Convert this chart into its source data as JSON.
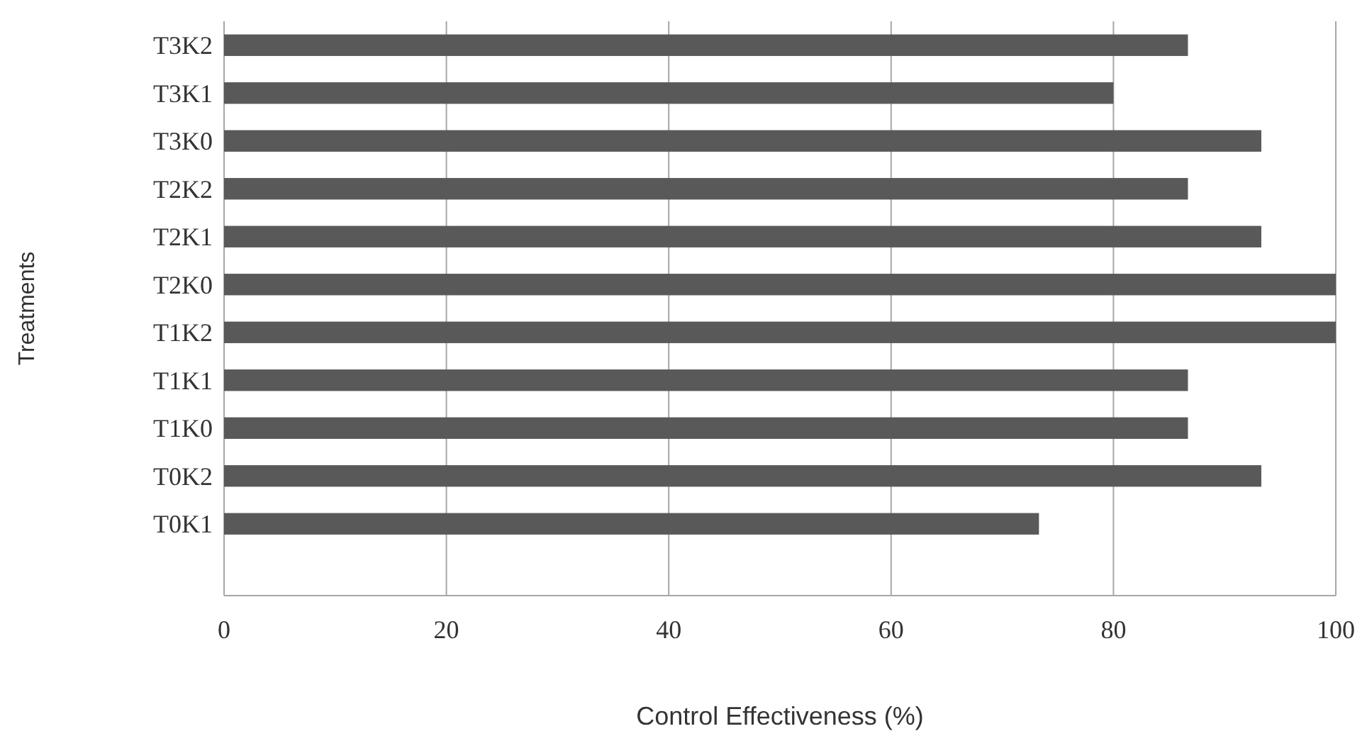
{
  "chart_data": {
    "type": "bar",
    "orientation": "horizontal",
    "xlabel": "Control Effectiveness (%)",
    "ylabel": "Treatments",
    "categories": [
      "T3K2",
      "T3K1",
      "T3K0",
      "T2K2",
      "T2K1",
      "T2K0",
      "T1K2",
      "T1K1",
      "T1K0",
      "T0K2",
      "T0K1",
      null
    ],
    "values": [
      86.7,
      80,
      93.3,
      86.7,
      93.3,
      100,
      100,
      86.7,
      86.7,
      93.3,
      73.3,
      null
    ],
    "color": "#595959",
    "xlim": [
      0,
      100
    ],
    "xticks": [
      0,
      20,
      40,
      60,
      80,
      100
    ],
    "grid": "x"
  }
}
